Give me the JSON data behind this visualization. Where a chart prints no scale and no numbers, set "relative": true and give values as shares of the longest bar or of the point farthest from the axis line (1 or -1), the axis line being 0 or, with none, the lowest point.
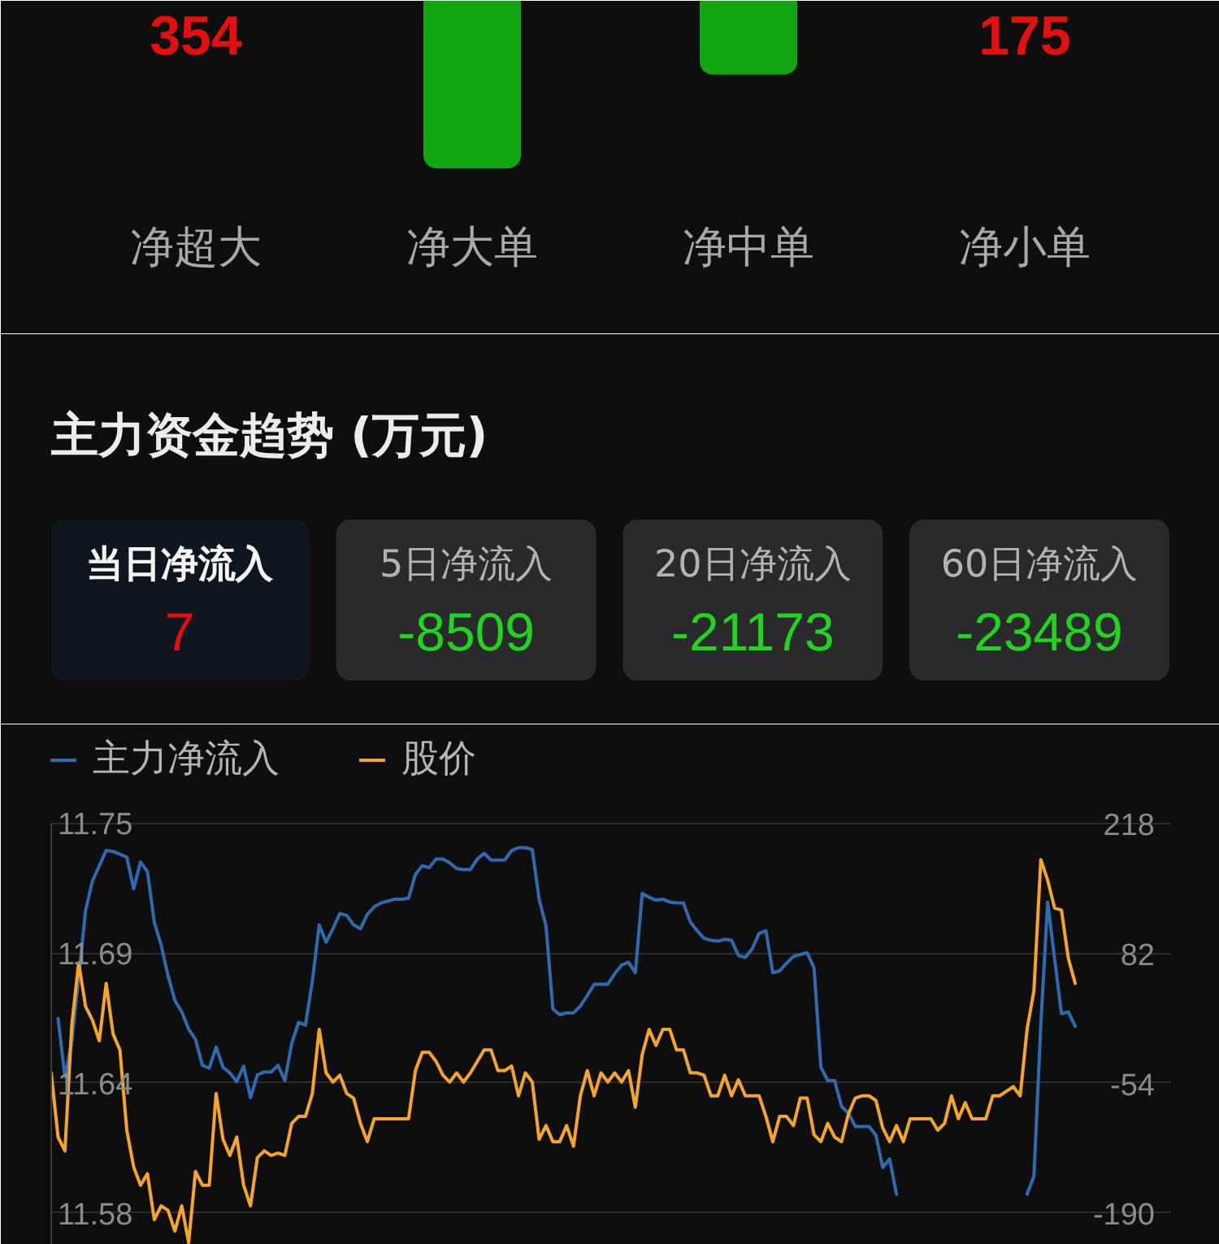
{
  "chart_data": [
    {
      "type": "bar",
      "categories": [
        "净超大",
        "净大单",
        "净中单",
        "净小单"
      ],
      "values": [
        null,
        -1,
        -0.44,
        null
      ],
      "relative": true,
      "annotations": [
        "354",
        "175"
      ],
      "colors": [
        "#e3100f",
        "#11a511",
        "#11a511",
        "#e3100f"
      ]
    },
    {
      "type": "other",
      "title": "主力资金趋势 (万元)",
      "categories": [
        "当日净流入",
        "5日净流入",
        "20日净流入",
        "60日净流入"
      ],
      "values": [
        7,
        -8509,
        -21173,
        -23489
      ],
      "data_labels": true
    },
    {
      "type": "line",
      "categories": [
        null,
        null,
        null,
        null,
        null,
        null,
        null,
        null,
        null,
        null,
        null,
        null,
        null,
        null,
        null,
        null,
        null,
        null,
        null,
        null,
        null,
        null,
        null,
        null,
        null,
        null,
        null,
        null,
        null,
        null,
        null,
        null,
        null,
        null,
        null,
        null,
        null,
        null,
        null,
        null,
        null,
        null,
        null,
        null,
        null,
        null,
        null,
        null,
        null,
        null,
        null,
        null,
        null,
        null,
        null,
        null,
        null,
        null,
        null,
        null,
        null,
        null,
        null,
        null,
        null,
        null,
        null,
        null,
        null,
        null,
        null,
        null,
        null,
        null,
        null,
        null,
        null,
        null,
        null,
        null,
        null,
        null,
        null,
        null,
        null,
        null,
        null,
        null,
        null,
        null,
        null,
        null,
        null,
        null,
        null,
        null,
        null,
        null,
        null,
        null,
        null,
        null,
        null,
        null,
        null,
        null,
        null,
        null,
        null,
        null,
        null,
        null,
        null,
        null,
        null,
        null,
        null,
        null,
        null,
        null,
        null,
        null,
        null,
        null,
        null,
        null,
        null,
        null,
        null,
        null,
        null,
        null,
        null,
        null,
        null,
        null,
        null,
        null,
        null,
        null,
        null,
        null,
        null,
        null,
        null,
        null,
        null,
        null,
        null,
        null,
        null,
        null,
        null,
        null,
        null,
        null,
        null,
        null,
        null,
        null,
        null,
        null,
        null
      ],
      "series": [
        {
          "name": "主力净流入",
          "color": "#2f6bb0",
          "axis": "y2",
          "values": [
            null,
            14,
            -47,
            -10,
            57,
            127,
            158,
            174,
            190,
            189,
            186,
            183,
            150,
            178,
            168,
            115,
            91,
            59,
            33,
            21,
            3,
            -8,
            -35,
            -38,
            -16,
            -37,
            -43,
            -52,
            -36,
            -69,
            -45,
            -42,
            -42,
            -35,
            -51,
            -12,
            10,
            7,
            53,
            112,
            94,
            108,
            124,
            122,
            112,
            108,
            123,
            131,
            135,
            137,
            139,
            139,
            140,
            165,
            174,
            172,
            181,
            181,
            177,
            171,
            170,
            170,
            181,
            187,
            180,
            180,
            180,
            190,
            193,
            193,
            191,
            139,
            111,
            24,
            18,
            20,
            20,
            27,
            38,
            50,
            50,
            50,
            61,
            70,
            73,
            62,
            145,
            141,
            138,
            139,
            136,
            135,
            135,
            115,
            106,
            98,
            96,
            95,
            97,
            96,
            80,
            78,
            87,
            103,
            106,
            62,
            64,
            72,
            79,
            81,
            83,
            67,
            -37,
            -51,
            -51,
            -78,
            -85,
            -99,
            -99,
            -99,
            -108,
            -142,
            -133,
            -170,
            null,
            null,
            null,
            null,
            null,
            null,
            null,
            null,
            null,
            null,
            null,
            null,
            null,
            null,
            null,
            null,
            null,
            null,
            -170,
            -151,
            8,
            136,
            77,
            19,
            21,
            6,
            null,
            null,
            null,
            null,
            null,
            null,
            null,
            null,
            null,
            null,
            null,
            null,
            null
          ]
        },
        {
          "name": "股价",
          "color": "#f5a62a",
          "values": [
            11.641,
            11.613,
            11.607,
            11.662,
            11.689,
            11.67,
            11.664,
            11.655,
            11.68,
            11.658,
            11.651,
            11.616,
            11.6,
            11.592,
            11.597,
            11.577,
            11.583,
            11.581,
            11.572,
            11.583,
            11.567,
            11.598,
            11.592,
            11.592,
            11.632,
            11.612,
            11.605,
            11.613,
            11.592,
            11.583,
            11.604,
            11.607,
            11.605,
            11.606,
            11.605,
            11.619,
            11.622,
            11.622,
            11.632,
            11.66,
            11.641,
            11.637,
            11.64,
            11.632,
            11.63,
            11.619,
            11.611,
            11.621,
            11.621,
            11.621,
            11.621,
            11.621,
            11.621,
            11.642,
            11.65,
            11.65,
            11.646,
            11.64,
            11.637,
            11.641,
            11.637,
            11.641,
            11.646,
            11.651,
            11.651,
            11.642,
            11.642,
            11.644,
            11.631,
            11.641,
            11.637,
            11.612,
            11.618,
            11.611,
            11.611,
            11.618,
            11.609,
            11.631,
            11.642,
            11.631,
            11.641,
            11.637,
            11.641,
            11.637,
            11.642,
            11.626,
            11.649,
            11.66,
            11.653,
            11.66,
            11.66,
            11.651,
            11.651,
            11.641,
            11.641,
            11.64,
            11.631,
            11.631,
            11.64,
            11.631,
            11.638,
            11.631,
            11.631,
            11.631,
            11.622,
            11.611,
            11.622,
            11.622,
            11.618,
            11.63,
            11.63,
            11.614,
            11.611,
            11.619,
            11.613,
            11.611,
            11.623,
            11.63,
            11.631,
            11.631,
            11.629,
            11.617,
            11.611,
            11.618,
            11.611,
            11.621,
            11.621,
            11.621,
            11.621,
            11.616,
            11.619,
            11.631,
            11.621,
            11.628,
            11.621,
            11.621,
            11.621,
            11.631,
            11.631,
            11.633,
            11.635,
            11.631,
            11.66,
            11.677,
            11.734,
            11.725,
            11.713,
            11.712,
            11.691,
            11.68,
            null,
            null,
            null,
            null,
            null,
            null,
            null,
            null,
            null,
            null,
            null,
            null,
            null
          ]
        }
      ],
      "ylim": [
        11.566,
        11.793
      ],
      "yticks": [
        11.75,
        {
          "value": 11.6933,
          "label": "11.69"
        },
        {
          "value": 11.6367,
          "label": "11.64"
        },
        11.58
      ],
      "y2lim": [
        -223,
        322
      ],
      "y2ticks": [
        218,
        82,
        -54,
        -190
      ],
      "grid": "y",
      "legend": "top left"
    }
  ]
}
